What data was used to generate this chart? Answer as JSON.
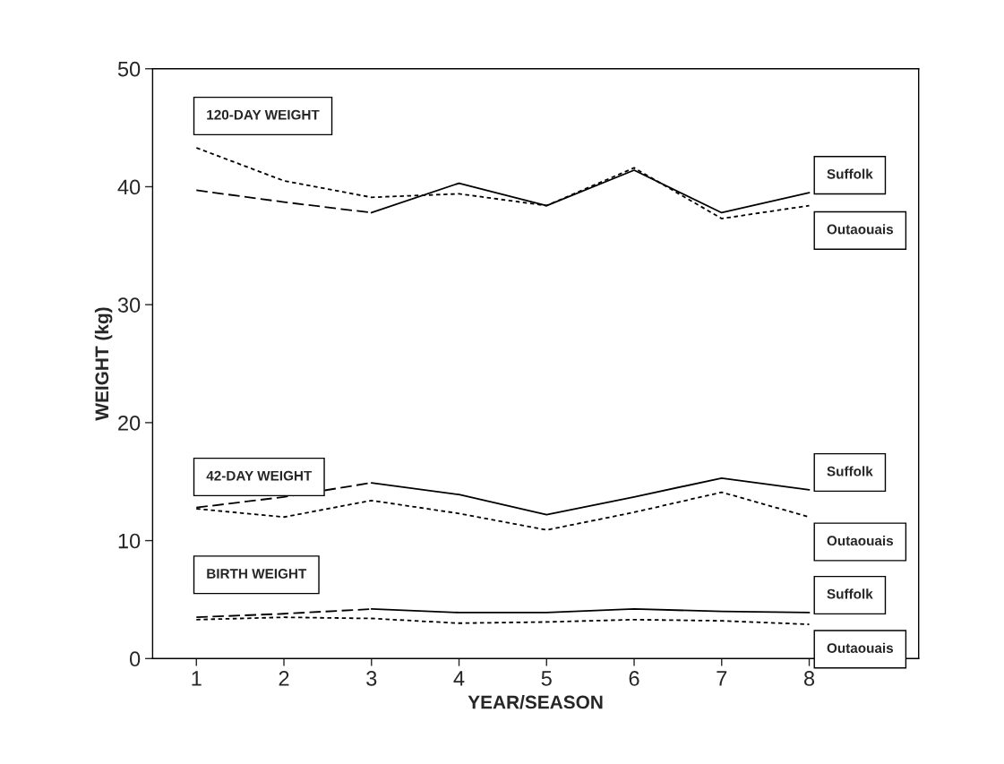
{
  "chart_data": {
    "type": "line",
    "xlabel": "YEAR/SEASON",
    "ylabel": "WEIGHT (kg)",
    "xlim": [
      0.5,
      9.25
    ],
    "xticks": [
      1,
      2,
      3,
      4,
      5,
      6,
      7,
      8,
      {
        "value": 8.7,
        "label": null
      }
    ],
    "ylim": [
      0,
      50
    ],
    "yticks": [
      0,
      10,
      20,
      30,
      40,
      50
    ],
    "grid": false,
    "marker": "none",
    "series": [
      {
        "color": "#000000",
        "line_style": "dashed",
        "x": [
          1,
          2,
          3
        ],
        "values": [
          39.7,
          38.7,
          37.8
        ]
      },
      {
        "name": "Suffolk",
        "color": "#000000",
        "line_style": "solid",
        "x": [
          3,
          4,
          5,
          6,
          7,
          8
        ],
        "values": [
          37.8,
          40.3,
          38.4,
          41.4,
          37.8,
          39.5
        ]
      },
      {
        "name": "Outaouais",
        "color": "#000000",
        "line_style": "dotted",
        "x": [
          1,
          2,
          3,
          4,
          5,
          6,
          7,
          8
        ],
        "values": [
          43.3,
          40.5,
          39.1,
          39.4,
          38.4,
          41.6,
          37.3,
          38.4
        ]
      },
      {
        "color": "#000000",
        "line_style": "dashed",
        "x": [
          1,
          2,
          3
        ],
        "values": [
          12.8,
          13.7,
          14.9
        ]
      },
      {
        "name": "Suffolk",
        "color": "#000000",
        "line_style": "solid",
        "x": [
          3,
          4,
          5,
          6,
          7,
          8
        ],
        "values": [
          14.9,
          13.9,
          12.2,
          13.7,
          15.3,
          14.3
        ]
      },
      {
        "name": "Outaouais",
        "color": "#000000",
        "line_style": "dotted",
        "x": [
          1,
          2,
          3,
          4,
          5,
          6,
          7,
          8
        ],
        "values": [
          12.7,
          12.0,
          13.4,
          12.3,
          10.9,
          12.4,
          14.1,
          12.0
        ]
      },
      {
        "color": "#000000",
        "line_style": "dashed",
        "x": [
          1,
          2,
          3
        ],
        "values": [
          3.5,
          3.8,
          4.2
        ]
      },
      {
        "name": "Suffolk",
        "color": "#000000",
        "line_style": "solid",
        "x": [
          3,
          4,
          5,
          6,
          7,
          8
        ],
        "values": [
          4.2,
          3.9,
          3.9,
          4.2,
          4.0,
          3.9
        ]
      },
      {
        "name": "Outaouais",
        "color": "#000000",
        "line_style": "dotted",
        "x": [
          1,
          2,
          3,
          4,
          5,
          6,
          7,
          8
        ],
        "values": [
          3.3,
          3.5,
          3.4,
          3.0,
          3.1,
          3.3,
          3.2,
          2.9
        ]
      }
    ],
    "annotations": [
      "120-DAY WEIGHT",
      "42-DAY WEIGHT",
      "BIRTH WEIGHT"
    ]
  }
}
